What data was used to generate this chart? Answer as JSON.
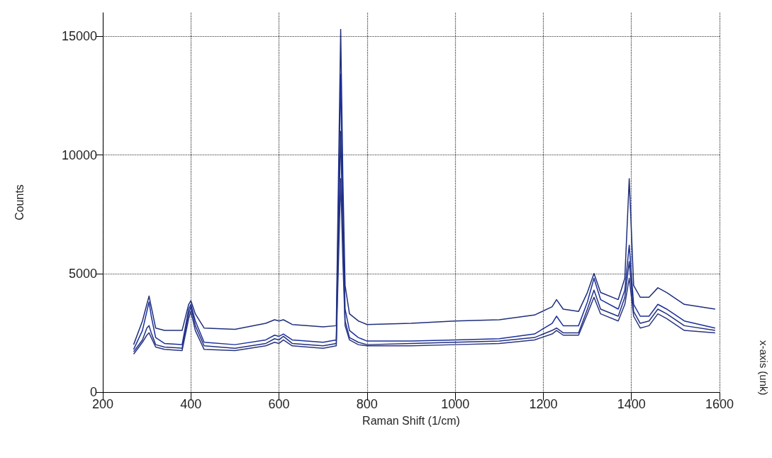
{
  "chart_data": {
    "type": "line",
    "xlabel": "Raman Shift (1/cm)",
    "ylabel": "Counts",
    "x": [
      270,
      290,
      300,
      305,
      310,
      320,
      340,
      380,
      395,
      400,
      410,
      430,
      500,
      570,
      590,
      600,
      610,
      630,
      700,
      730,
      740,
      745,
      750,
      760,
      780,
      800,
      900,
      1000,
      1100,
      1180,
      1220,
      1230,
      1245,
      1280,
      1300,
      1315,
      1330,
      1370,
      1385,
      1395,
      1405,
      1420,
      1440,
      1460,
      1480,
      1520,
      1590
    ],
    "series": [
      {
        "color": "#1f2f7a",
        "values": [
          2000,
          3000,
          3700,
          4050,
          3600,
          2700,
          2600,
          2600,
          3700,
          3850,
          3300,
          2700,
          2650,
          2900,
          3050,
          3000,
          3050,
          2850,
          2750,
          2800,
          15300,
          9000,
          4500,
          3300,
          3000,
          2850,
          2900,
          3000,
          3050,
          3250,
          3600,
          3900,
          3500,
          3400,
          4200,
          5000,
          4200,
          3900,
          4800,
          9000,
          4500,
          4000,
          4000,
          4400,
          4200,
          3700,
          3500
        ]
      },
      {
        "color": "#1a2f9c",
        "values": [
          1800,
          2600,
          3400,
          3800,
          3200,
          2300,
          2050,
          2000,
          3500,
          3700,
          3000,
          2100,
          2000,
          2200,
          2400,
          2350,
          2450,
          2200,
          2100,
          2200,
          13400,
          7500,
          3500,
          2600,
          2300,
          2150,
          2150,
          2200,
          2250,
          2450,
          2900,
          3200,
          2800,
          2800,
          3800,
          4800,
          3900,
          3500,
          4300,
          6200,
          3700,
          3200,
          3200,
          3700,
          3500,
          3000,
          2700
        ]
      },
      {
        "color": "#23307f",
        "values": [
          1700,
          2200,
          2700,
          2800,
          2500,
          2000,
          1900,
          1850,
          3300,
          3600,
          2800,
          1950,
          1850,
          2050,
          2250,
          2200,
          2350,
          2050,
          1950,
          2050,
          11000,
          6500,
          3000,
          2300,
          2100,
          2000,
          2050,
          2100,
          2150,
          2300,
          2600,
          2700,
          2500,
          2500,
          3500,
          4300,
          3500,
          3200,
          4000,
          5500,
          3400,
          2900,
          3000,
          3500,
          3300,
          2800,
          2600
        ]
      },
      {
        "color": "#2a3580",
        "values": [
          1600,
          2100,
          2400,
          2500,
          2300,
          1900,
          1800,
          1750,
          3100,
          3400,
          2600,
          1800,
          1750,
          1950,
          2100,
          2050,
          2200,
          1950,
          1850,
          1950,
          9000,
          5500,
          2800,
          2200,
          2000,
          1950,
          1950,
          2000,
          2050,
          2200,
          2450,
          2600,
          2400,
          2400,
          3300,
          4000,
          3300,
          3000,
          3700,
          4800,
          3200,
          2700,
          2800,
          3300,
          3100,
          2600,
          2500
        ]
      }
    ],
    "xlim": [
      200,
      1600
    ],
    "xticks": [
      200,
      400,
      600,
      800,
      1000,
      1200,
      1400,
      1600
    ],
    "ylim": [
      0,
      16000
    ],
    "yticks": [
      0,
      5000,
      10000,
      15000
    ],
    "grid": true,
    "marker": "none",
    "line_style": "solid",
    "annotations": [
      "x-axis (unk)"
    ]
  }
}
